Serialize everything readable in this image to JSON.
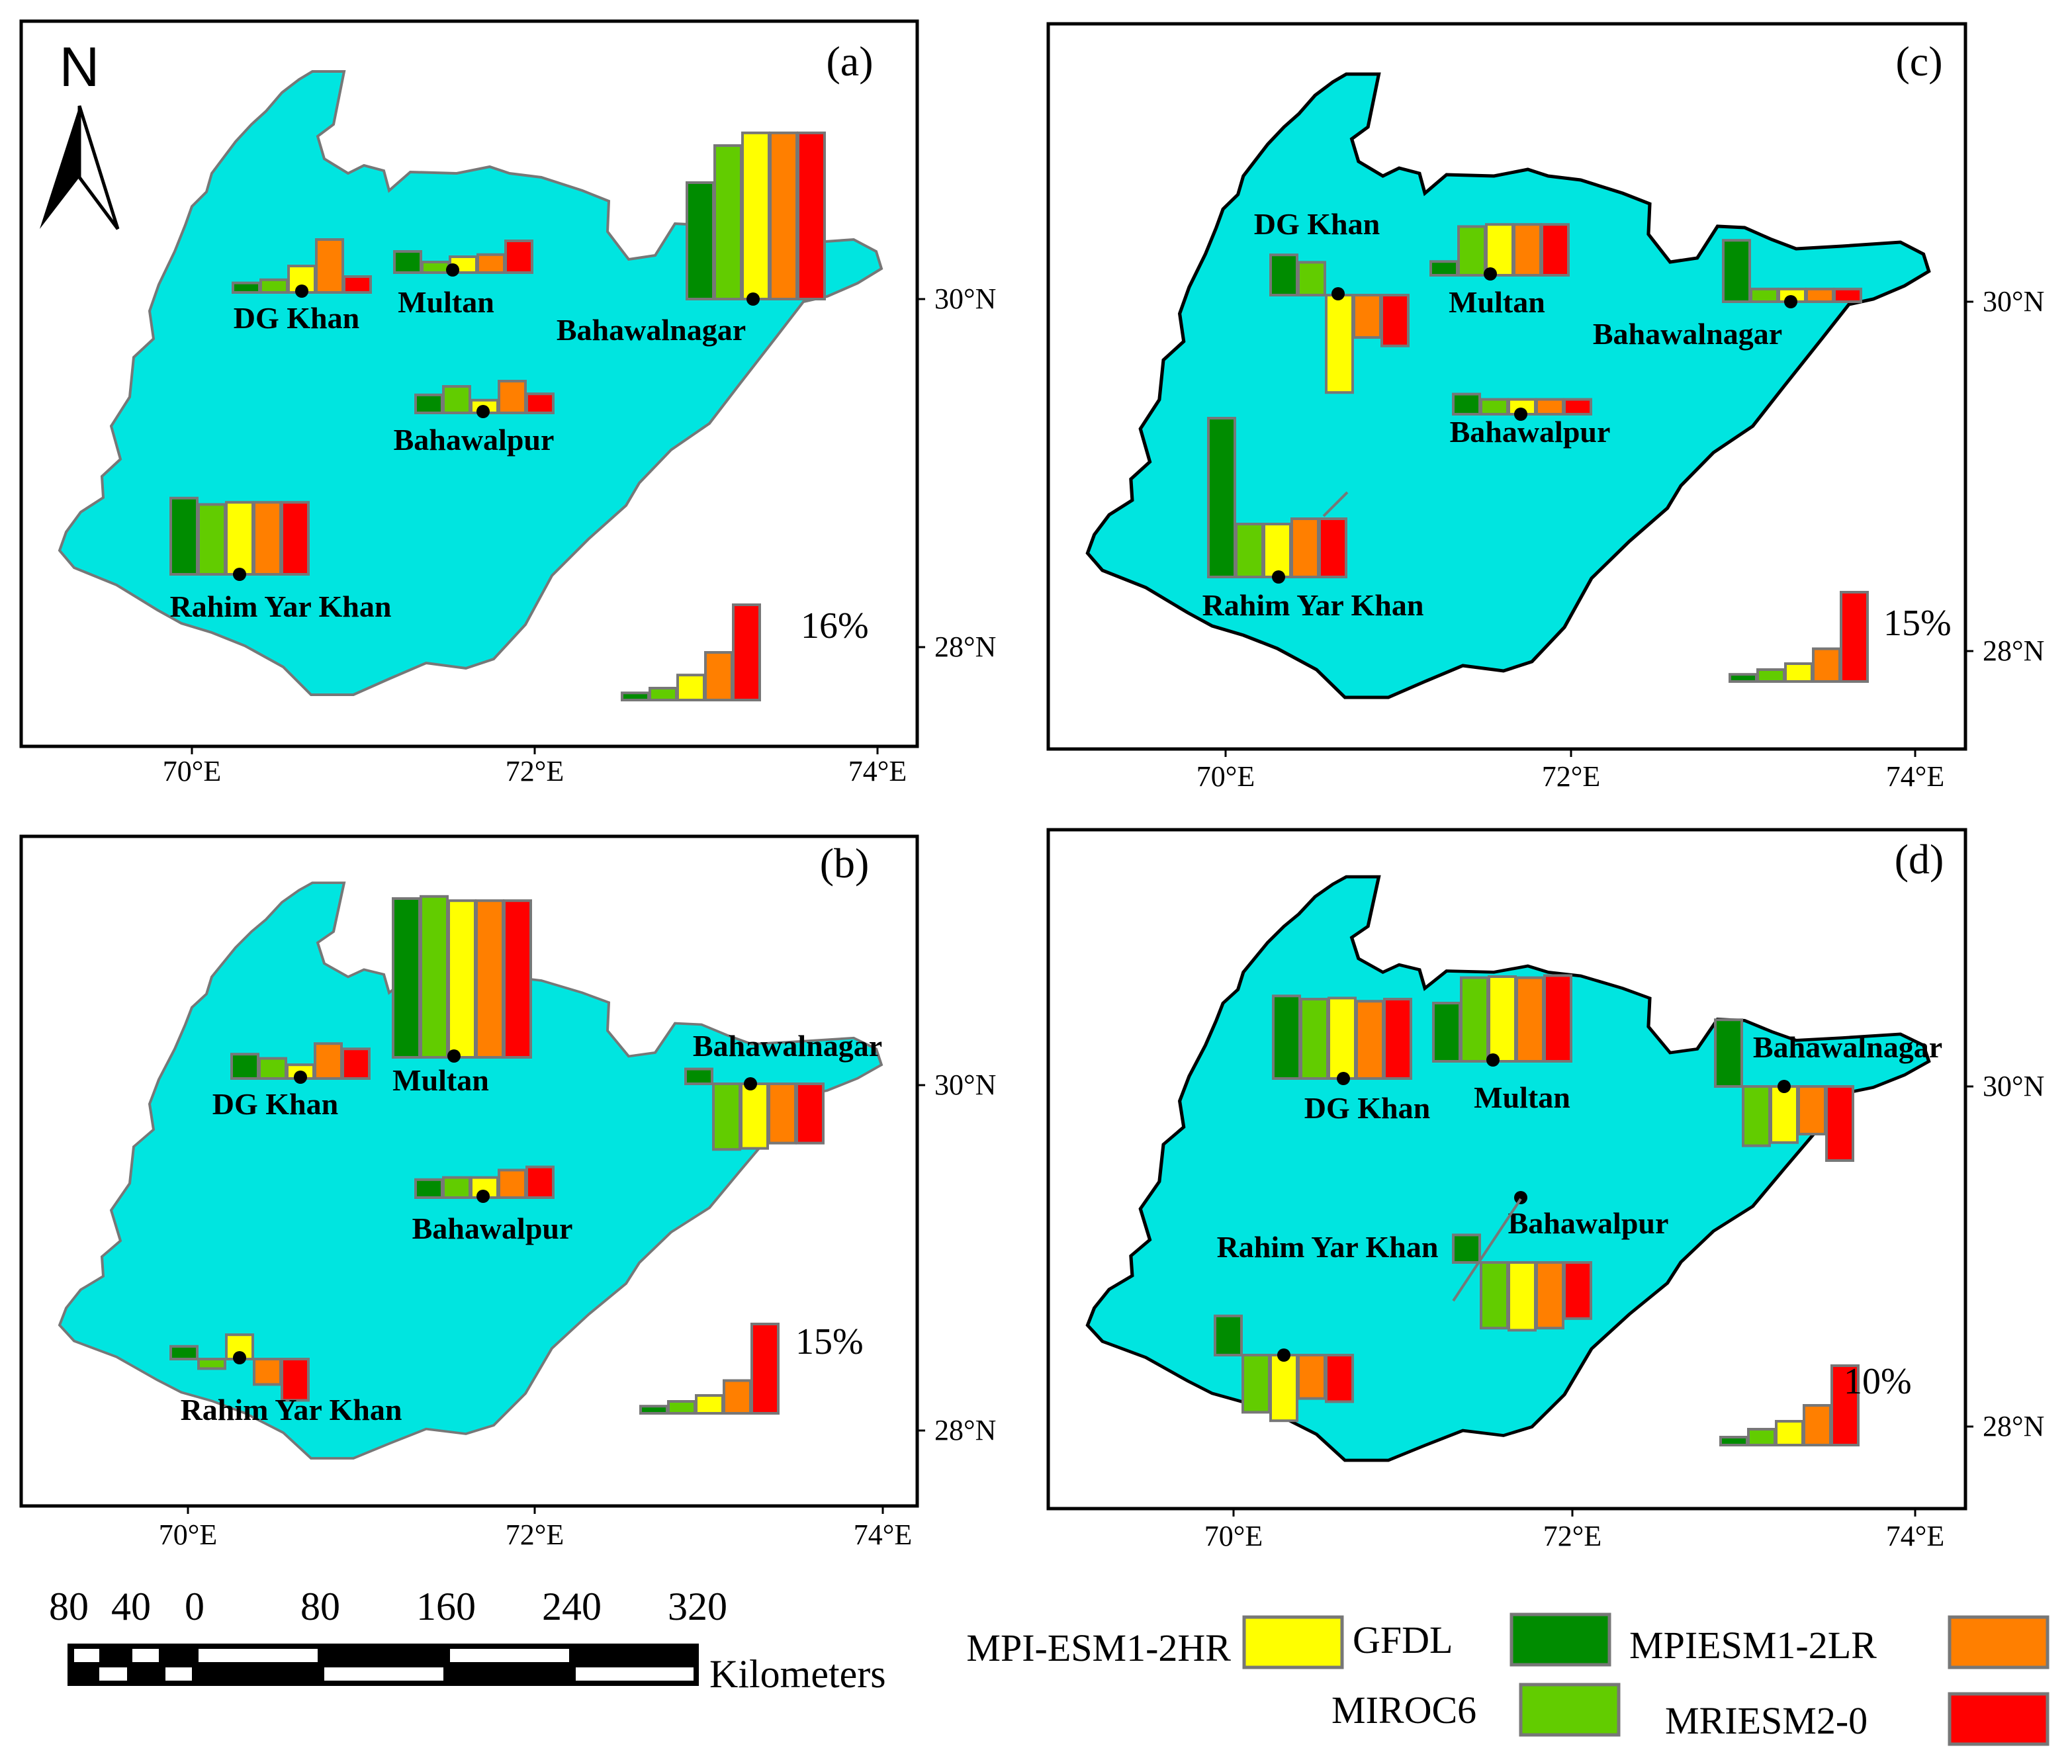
{
  "colors": {
    "land": "#00E5E0",
    "bar_outline": "#777777",
    "GFDL": "#008C00",
    "MIROC6": "#62CC00",
    "MPI-ESM1-2HR": "#FFFF00",
    "MPIESM1-2LR": "#FF7F00",
    "MRIESM2-0": "#FF0000"
  },
  "models": [
    "GFDL",
    "MIROC6",
    "MPI-ESM1-2HR",
    "MPIESM1-2LR",
    "MRIESM2-0"
  ],
  "north_arrow": {
    "label": "N"
  },
  "panels": [
    {
      "id": "a",
      "label": "(a)",
      "ref_value": "16%",
      "x_ticks": [
        "70°E",
        "72°E",
        "74°E"
      ],
      "y_ticks": [
        "30°N",
        "28°N"
      ],
      "cities": [
        {
          "name": "DG Khan",
          "values": [
            0.9,
            1.2,
            2.5,
            5.0,
            1.5
          ]
        },
        {
          "name": "Multan",
          "values": [
            2.0,
            1.0,
            1.5,
            1.7,
            3.0
          ]
        },
        {
          "name": "Bahawalnagar",
          "values": [
            11.0,
            14.5,
            15.7,
            15.7,
            15.7
          ]
        },
        {
          "name": "Bahawalpur",
          "values": [
            1.7,
            2.5,
            1.2,
            3.0,
            1.8
          ]
        },
        {
          "name": "Rahim Yar Khan",
          "values": [
            7.2,
            6.6,
            6.8,
            6.8,
            6.8
          ]
        }
      ]
    },
    {
      "id": "b",
      "label": "(b)",
      "ref_value": "15%",
      "x_ticks": [
        "70°E",
        "72°E",
        "74°E"
      ],
      "y_ticks": [
        "30°N",
        "28°N"
      ],
      "cities": [
        {
          "name": "DG Khan",
          "values": [
            2.3,
            1.9,
            1.3,
            3.3,
            2.8
          ]
        },
        {
          "name": "Multan",
          "values": [
            15.0,
            15.2,
            14.8,
            14.8,
            14.8
          ]
        },
        {
          "name": "Bahawalnagar",
          "values": [
            1.4,
            -6.2,
            -6.1,
            -5.6,
            -5.6
          ]
        },
        {
          "name": "Bahawalpur",
          "values": [
            1.7,
            1.9,
            1.9,
            2.6,
            2.9
          ]
        },
        {
          "name": "Rahim Yar Khan",
          "values": [
            1.2,
            -0.9,
            2.3,
            -2.4,
            -3.9
          ]
        }
      ]
    },
    {
      "id": "c",
      "label": "(c)",
      "ref_value": "15%",
      "x_ticks": [
        "70°E",
        "72°E",
        "74°E"
      ],
      "y_ticks": [
        "30°N",
        "28°N"
      ],
      "cities": [
        {
          "name": "DG Khan",
          "values": [
            3.8,
            3.1,
            -9.2,
            -4.0,
            -4.8
          ]
        },
        {
          "name": "Multan",
          "values": [
            1.3,
            4.6,
            4.8,
            4.8,
            4.8
          ]
        },
        {
          "name": "Bahawalnagar",
          "values": [
            5.8,
            1.2,
            1.2,
            1.2,
            1.2
          ]
        },
        {
          "name": "Bahawalpur",
          "values": [
            1.9,
            1.4,
            1.4,
            1.4,
            1.4
          ]
        },
        {
          "name": "Rahim Yar Khan",
          "values": [
            15.0,
            5.0,
            5.0,
            5.5,
            5.5
          ]
        }
      ]
    },
    {
      "id": "d",
      "label": "(d)",
      "ref_value": "10%",
      "x_ticks": [
        "70°E",
        "72°E",
        "74°E"
      ],
      "y_ticks": [
        "30°N",
        "28°N"
      ],
      "cities": [
        {
          "name": "DG Khan",
          "values": [
            7.8,
            7.5,
            7.6,
            7.3,
            7.5
          ]
        },
        {
          "name": "Multan",
          "values": [
            5.5,
            7.9,
            8.0,
            7.9,
            8.1
          ]
        },
        {
          "name": "Bahawalnagar",
          "values": [
            6.3,
            -5.6,
            -5.3,
            -4.5,
            -7.0
          ]
        },
        {
          "name": "Bahawalpur",
          "values": [
            2.6,
            -6.2,
            -6.4,
            -6.2,
            -5.3
          ]
        },
        {
          "name": "Rahim Yar Khan",
          "values": [
            3.7,
            -5.4,
            -6.2,
            -4.1,
            -4.4
          ]
        }
      ]
    }
  ],
  "scale_bar": {
    "labels": [
      "80",
      "40",
      "0",
      "80",
      "160",
      "240",
      "320"
    ],
    "unit": "Kilometers"
  },
  "legend": [
    {
      "model": "MPI-ESM1-2HR",
      "label": "MPI-ESM1-2HR"
    },
    {
      "model": "GFDL",
      "label": "GFDL"
    },
    {
      "model": "MPIESM1-2LR",
      "label": "MPIESM1-2LR"
    },
    {
      "model": "MIROC6",
      "label": "MIROC6"
    },
    {
      "model": "MRIESM2-0",
      "label": "MRIESM2-0"
    }
  ]
}
